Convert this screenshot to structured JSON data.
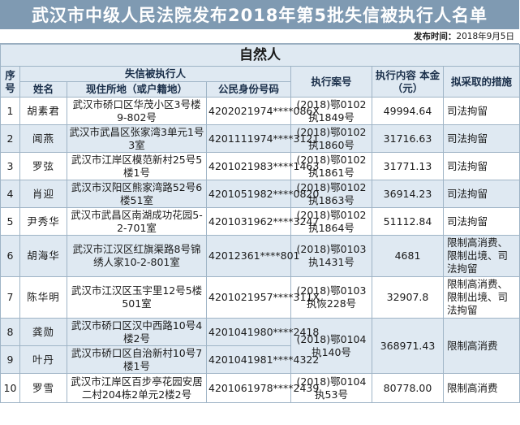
{
  "header": {
    "title": "武汉市中级人民法院发布2018年第5批失信被执行人名单",
    "publish_label": "发布时间：",
    "publish_date": "2018年9月5日"
  },
  "section_title": "自然人",
  "columns": {
    "seq": "序号",
    "group": "失信被执行人",
    "name": "姓名",
    "address": "现住所地（或户籍地）",
    "id": "公民身份号码",
    "case": "执行案号",
    "amount": "执行内容 本金（元）",
    "measures": "拟采取的措施"
  },
  "rows": [
    {
      "seq": "1",
      "name": "胡素君",
      "address": "武汉市硚口区华茂小区3号楼9-802号",
      "id": "4202021974****086X",
      "case": "(2018)鄂0102执1849号",
      "amount": "49994.64",
      "measure": "司法拘留"
    },
    {
      "seq": "2",
      "name": "闻燕",
      "address": "武汉市武昌区张家湾3单元1号3室",
      "id": "4201111974****3121",
      "case": "(2018)鄂0102执1860号",
      "amount": "31716.63",
      "measure": "司法拘留"
    },
    {
      "seq": "3",
      "name": "罗弦",
      "address": "武汉市江岸区模范新村25号5楼1号",
      "id": "4201021983****1463",
      "case": "(2018)鄂0102执1861号",
      "amount": "31771.13",
      "measure": "司法拘留"
    },
    {
      "seq": "4",
      "name": "肖迎",
      "address": "武汉市汉阳区熊家湾路52号6楼51室",
      "id": "4201051982****0820",
      "case": "(2018)鄂0102执1863号",
      "amount": "36914.23",
      "measure": "司法拘留"
    },
    {
      "seq": "5",
      "name": "尹秀华",
      "address": "武汉市武昌区南湖成功花园5-2-701室",
      "id": "4201031962****3247",
      "case": "(2018)鄂0102执1864号",
      "amount": "51112.84",
      "measure": "司法拘留"
    },
    {
      "seq": "6",
      "name": "胡海华",
      "address": "武汉市江汉区红旗渠路8号锦绣人家10-2-801室",
      "id": "42012361****801",
      "case": "(2018)鄂0103执1431号",
      "amount": "4681",
      "measure": "限制高消费、限制出境、司法拘留"
    },
    {
      "seq": "7",
      "name": "陈华明",
      "address": "武汉市江汉区玉宇里12号5楼501室",
      "id": "4201021957****311X",
      "case": "(2018)鄂0103执恢228号",
      "amount": "32907.8",
      "measure": "限制高消费、限制出境、司法拘留"
    },
    {
      "seq": "8",
      "name": "龚勋",
      "address": "武汉市硚口区汉中西路10号4楼2号",
      "id": "4201041980****2418"
    },
    {
      "seq": "9",
      "name": "叶丹",
      "address": "武汉市硚口区自治新村10号7楼1号",
      "id": "4201041981****4322"
    },
    {
      "seq": "10",
      "name": "罗雪",
      "address": "武汉市江岸区百步亭花园安居二村204栋2单元2楼2号",
      "id": "4201061978****2439",
      "case": "(2018)鄂0104执53号",
      "amount": "80778.00",
      "measure": "限制高消费"
    }
  ],
  "merged_8_9": {
    "case": "(2018)鄂0104执140号",
    "amount": "368971.43",
    "measure": "限制高消费"
  }
}
